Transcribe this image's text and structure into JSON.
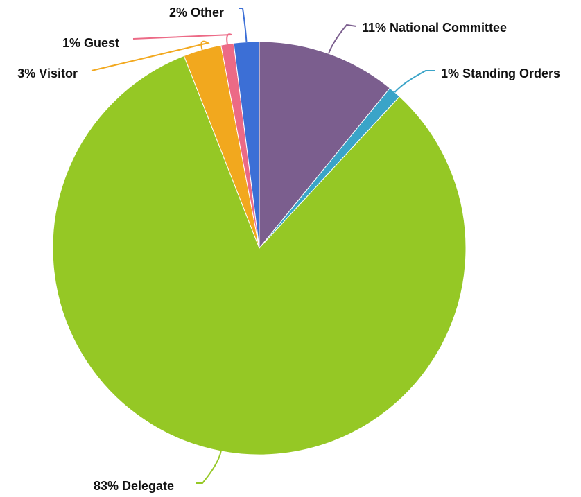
{
  "chart_data": {
    "type": "pie",
    "title": "",
    "slices": [
      {
        "name": "National Committee",
        "value": 11,
        "label": "11% National Committee",
        "color": "#7B5E8E"
      },
      {
        "name": "Standing Orders",
        "value": 1,
        "label": "1% Standing Orders",
        "color": "#3AA4C8"
      },
      {
        "name": "Delegate",
        "value": 83,
        "label": "83% Delegate",
        "color": "#95C825"
      },
      {
        "name": "Visitor",
        "value": 3,
        "label": "3% Visitor",
        "color": "#F2A81E"
      },
      {
        "name": "Guest",
        "value": 1,
        "label": "1% Guest",
        "color": "#EC6A86"
      },
      {
        "name": "Other",
        "value": 2,
        "label": "2% Other",
        "color": "#3C6FD6"
      }
    ]
  }
}
